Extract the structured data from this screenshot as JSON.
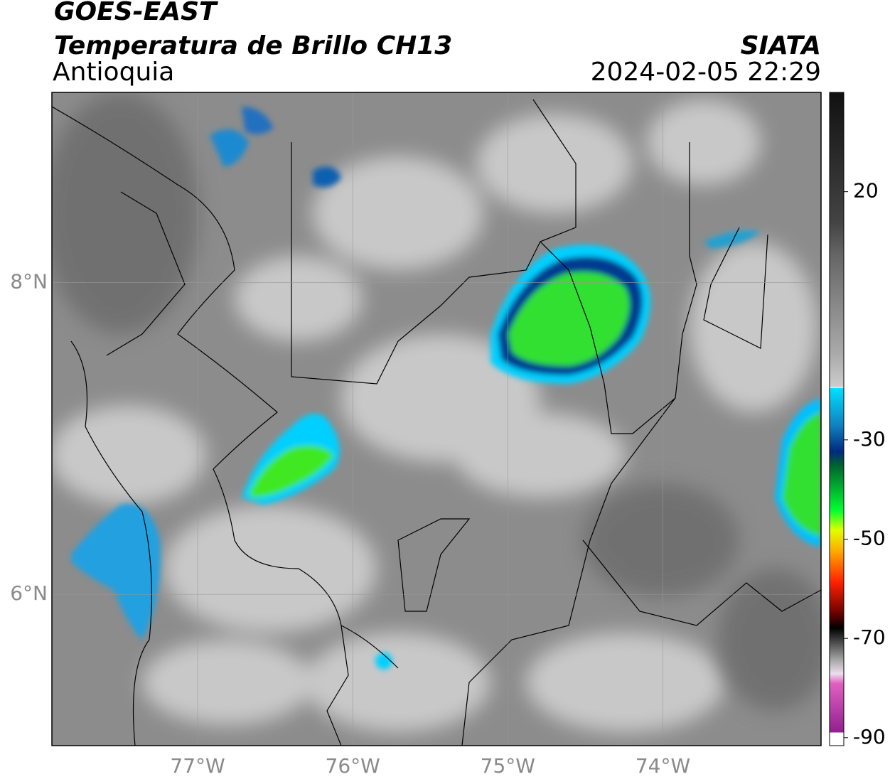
{
  "header": {
    "title": "GOES-EAST",
    "subtitle": "Temperatura de Brillo CH13",
    "region": "Antioquia",
    "source": "SIATA",
    "datetime": "2024-02-05 22:29"
  },
  "map": {
    "xlim": [
      -77.94,
      -72.98
    ],
    "ylim": [
      5.03,
      9.22
    ],
    "xticks": [
      {
        "value": -77,
        "label": "77°W"
      },
      {
        "value": -76,
        "label": "76°W"
      },
      {
        "value": -75,
        "label": "75°W"
      },
      {
        "value": -74,
        "label": "74°W"
      }
    ],
    "yticks": [
      {
        "value": 8,
        "label": "8°N"
      },
      {
        "value": 6,
        "label": "6°N"
      }
    ],
    "grid": true
  },
  "colorbar": {
    "lim": [
      -91.6,
      40
    ],
    "ticks": [
      20,
      -30,
      -50,
      -70,
      -90
    ]
  }
}
